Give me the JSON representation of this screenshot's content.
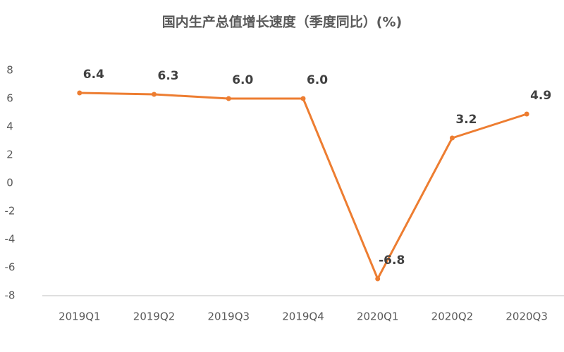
{
  "chart_data": {
    "type": "line",
    "title": "国内生产总值增长速度（季度同比）(%)",
    "categories": [
      "2019Q1",
      "2019Q2",
      "2019Q3",
      "2019Q4",
      "2020Q1",
      "2020Q2",
      "2020Q3"
    ],
    "values": [
      6.4,
      6.3,
      6.0,
      6.0,
      -6.8,
      3.2,
      4.9
    ],
    "value_labels": [
      "6.4",
      "6.3",
      "6.0",
      "6.0",
      "-6.8",
      "3.2",
      "4.9"
    ],
    "color": "#ed7d31",
    "ylim": [
      -8,
      8
    ],
    "yticks": [
      -8,
      -6,
      -4,
      -2,
      0,
      2,
      4,
      6,
      8
    ],
    "grid": false
  }
}
